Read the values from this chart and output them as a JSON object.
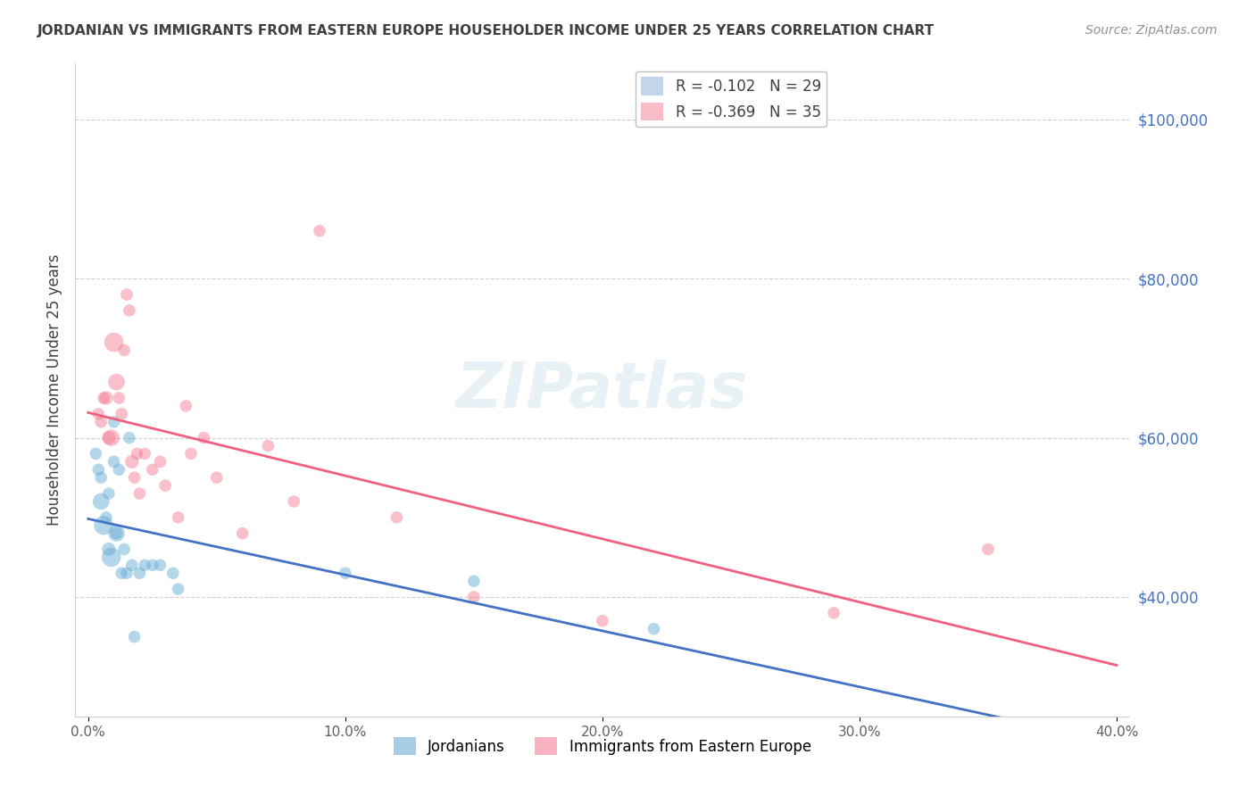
{
  "title": "JORDANIAN VS IMMIGRANTS FROM EASTERN EUROPE HOUSEHOLDER INCOME UNDER 25 YEARS CORRELATION CHART",
  "source": "Source: ZipAtlas.com",
  "ylabel": "Householder Income Under 25 years",
  "y_ticks": [
    40000,
    60000,
    80000,
    100000
  ],
  "y_tick_labels": [
    "$40,000",
    "$60,000",
    "$80,000",
    "$100,000"
  ],
  "xlim": [
    0.0,
    0.4
  ],
  "ylim": [
    25000,
    107000
  ],
  "legend_label_jordanians": "Jordanians",
  "legend_label_eastern_europe": "Immigrants from Eastern Europe",
  "watermark": "ZIPatlas",
  "blue_color": "#6aaed6",
  "pink_color": "#f48098",
  "blue_line_color": "#4472c4",
  "pink_line_color": "#f06080",
  "dashed_line_color": "#b0c8e0",
  "title_color": "#404040",
  "right_axis_label_color": "#4472c4",
  "jordanians_x": [
    0.003,
    0.004,
    0.005,
    0.005,
    0.006,
    0.007,
    0.008,
    0.008,
    0.009,
    0.01,
    0.01,
    0.011,
    0.011,
    0.012,
    0.013,
    0.014,
    0.015,
    0.016,
    0.017,
    0.018,
    0.02,
    0.022,
    0.025,
    0.028,
    0.033,
    0.035,
    0.1,
    0.15,
    0.22
  ],
  "jordanians_y": [
    58000,
    56000,
    52000,
    55000,
    49000,
    50000,
    53000,
    46000,
    45000,
    62000,
    57000,
    48000,
    48000,
    56000,
    43000,
    46000,
    43000,
    60000,
    44000,
    35000,
    43000,
    44000,
    44000,
    44000,
    43000,
    41000,
    43000,
    42000,
    36000
  ],
  "jordanians_sizes": [
    80,
    80,
    150,
    80,
    200,
    80,
    80,
    100,
    200,
    80,
    80,
    80,
    150,
    80,
    80,
    80,
    80,
    80,
    80,
    80,
    80,
    80,
    80,
    80,
    80,
    80,
    80,
    80,
    80
  ],
  "eastern_europe_x": [
    0.004,
    0.005,
    0.006,
    0.007,
    0.008,
    0.009,
    0.01,
    0.011,
    0.012,
    0.013,
    0.014,
    0.015,
    0.016,
    0.017,
    0.018,
    0.019,
    0.02,
    0.022,
    0.025,
    0.028,
    0.03,
    0.035,
    0.038,
    0.04,
    0.045,
    0.05,
    0.06,
    0.07,
    0.08,
    0.09,
    0.12,
    0.15,
    0.2,
    0.29,
    0.35
  ],
  "eastern_europe_y": [
    63000,
    62000,
    65000,
    65000,
    60000,
    60000,
    72000,
    67000,
    65000,
    63000,
    71000,
    78000,
    76000,
    57000,
    55000,
    58000,
    53000,
    58000,
    56000,
    57000,
    54000,
    50000,
    64000,
    58000,
    60000,
    55000,
    48000,
    59000,
    52000,
    86000,
    50000,
    40000,
    37000,
    38000,
    46000
  ],
  "eastern_europe_sizes": [
    80,
    80,
    80,
    100,
    100,
    150,
    200,
    150,
    80,
    80,
    80,
    80,
    80,
    100,
    80,
    80,
    80,
    80,
    80,
    80,
    80,
    80,
    80,
    80,
    80,
    80,
    80,
    80,
    80,
    80,
    80,
    80,
    80,
    80,
    80
  ]
}
